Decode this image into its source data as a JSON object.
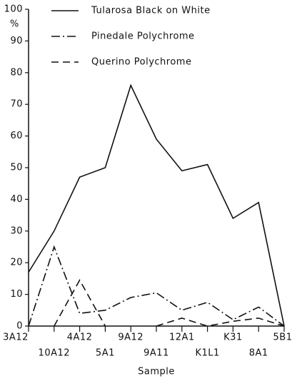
{
  "chart_data": {
    "type": "line",
    "x_label": "Sample",
    "y_label": "%",
    "categories": [
      "3A12",
      "10A12",
      "4A12",
      "5A1",
      "9A12",
      "9A11",
      "12A1",
      "K1L1",
      "K31",
      "8A1",
      "5B1"
    ],
    "series": [
      {
        "name": "Tularosa Black on White",
        "color": "#111111",
        "linestyle": "solid",
        "values": [
          17,
          30,
          47,
          50,
          76,
          59,
          49,
          51,
          34,
          39,
          0
        ]
      },
      {
        "name": "Pinedale Polychrome",
        "color": "#111111",
        "linestyle": "dashdot",
        "values": [
          0,
          25,
          4,
          5,
          9,
          10.5,
          5,
          7.5,
          2,
          6,
          0
        ]
      },
      {
        "name": "Querino Polychrome",
        "color": "#111111",
        "linestyle": "dashed",
        "values": [
          null,
          0,
          14.5,
          0,
          null,
          0,
          2.5,
          0,
          1.5,
          2.5,
          0
        ]
      }
    ],
    "ylim": [
      0,
      100
    ],
    "yticks": [
      0,
      10,
      20,
      30,
      40,
      50,
      60,
      70,
      80,
      90,
      100
    ],
    "legend": "upper right"
  }
}
